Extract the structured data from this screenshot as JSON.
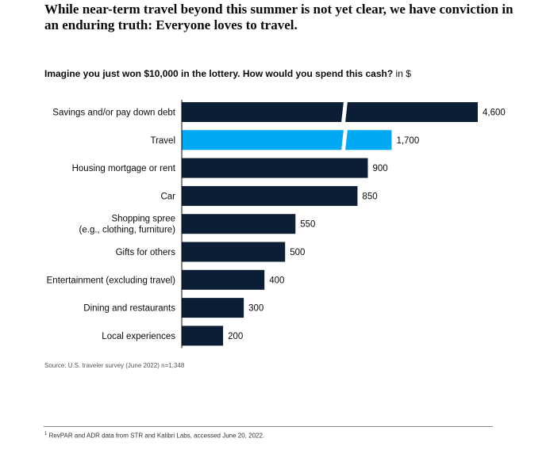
{
  "headline": "While near-term travel beyond this summer is not yet clear, we have conviction in an enduring truth: Everyone loves to travel.",
  "chart_data": {
    "type": "bar",
    "orientation": "horizontal",
    "title": "Imagine you just won $10,000 in the lottery. How would you spend this cash?",
    "unit_label": "in $",
    "categories": [
      [
        "Savings and/or pay down debt"
      ],
      [
        "Travel"
      ],
      [
        "Housing mortgage or rent"
      ],
      [
        "Car"
      ],
      [
        "Shopping spree",
        "(e.g., clothing, furniture)"
      ],
      [
        "Gifts for others"
      ],
      [
        "Entertainment (excluding travel)"
      ],
      [
        "Dining and restaurants"
      ],
      [
        "Local experiences"
      ]
    ],
    "values": [
      4600,
      1700,
      900,
      850,
      550,
      500,
      400,
      300,
      200
    ],
    "value_labels": [
      "4,600",
      "1,700",
      "900",
      "850",
      "550",
      "500",
      "400",
      "300",
      "200"
    ],
    "highlight_index": 1,
    "colors": {
      "default": "#0b1e36",
      "highlight": "#00a9f4",
      "axis": "#0a0a0a"
    },
    "axis_break": true
  },
  "source": "Source: U.S. traveler survey (June 2022) n=1,348",
  "footnote": {
    "marker": "1",
    "text": "RevPAR and ADR data from STR and Kalibri Labs, accessed June 20, 2022."
  }
}
